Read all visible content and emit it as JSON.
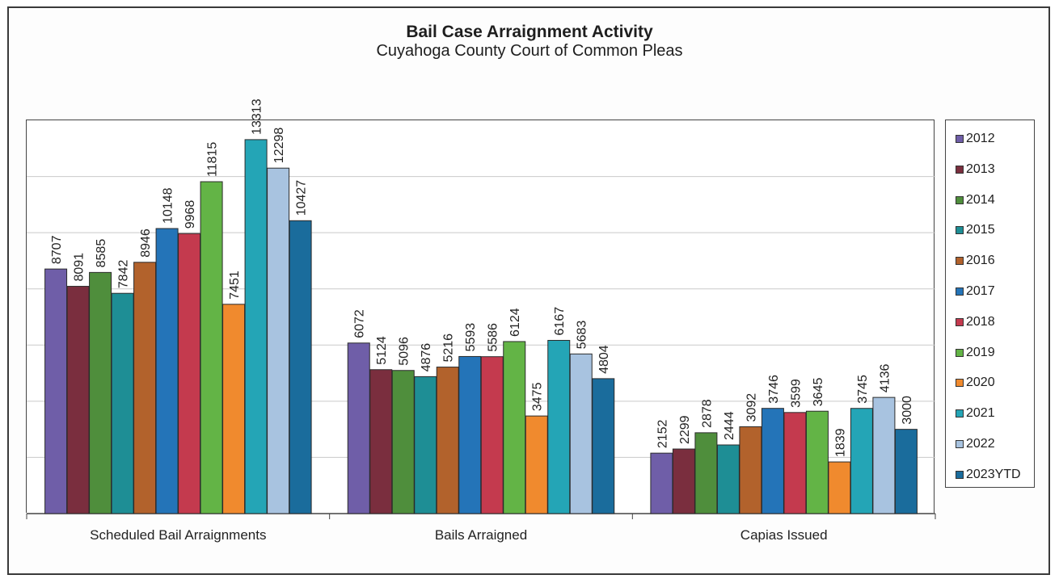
{
  "chart_data": {
    "type": "bar",
    "title": "Bail Case Arraignment Activity",
    "subtitle": "Cuyahoga County Court of Common Pleas",
    "categories": [
      "Scheduled Bail Arraignments",
      "Bails Arraigned",
      "Capias Issued"
    ],
    "ylim": [
      0,
      14000
    ],
    "grid": true,
    "legend_position": "right",
    "series": [
      {
        "name": "2012",
        "color": "#6f5ea8",
        "values": [
          8707,
          6072,
          2152
        ]
      },
      {
        "name": "2013",
        "color": "#7a2e3e",
        "values": [
          8091,
          5124,
          2299
        ]
      },
      {
        "name": "2014",
        "color": "#4f8e3c",
        "values": [
          8585,
          5096,
          2878
        ]
      },
      {
        "name": "2015",
        "color": "#1e8e95",
        "values": [
          7842,
          4876,
          2444
        ]
      },
      {
        "name": "2016",
        "color": "#b2622c",
        "values": [
          8946,
          5216,
          3092
        ]
      },
      {
        "name": "2017",
        "color": "#2474b8",
        "values": [
          10148,
          5593,
          3746
        ]
      },
      {
        "name": "2018",
        "color": "#c43a4e",
        "values": [
          9968,
          5586,
          3599
        ]
      },
      {
        "name": "2019",
        "color": "#63b446",
        "values": [
          11815,
          6124,
          3645
        ]
      },
      {
        "name": "2020",
        "color": "#f08a2e",
        "values": [
          7451,
          3475,
          1839
        ]
      },
      {
        "name": "2021",
        "color": "#24a5b6",
        "values": [
          13313,
          6167,
          3745
        ]
      },
      {
        "name": "2022",
        "color": "#a8c3e0",
        "values": [
          12298,
          5683,
          4136
        ]
      },
      {
        "name": "2023YTD",
        "color": "#1a6c9c",
        "values": [
          10427,
          4804,
          3000
        ]
      }
    ]
  }
}
